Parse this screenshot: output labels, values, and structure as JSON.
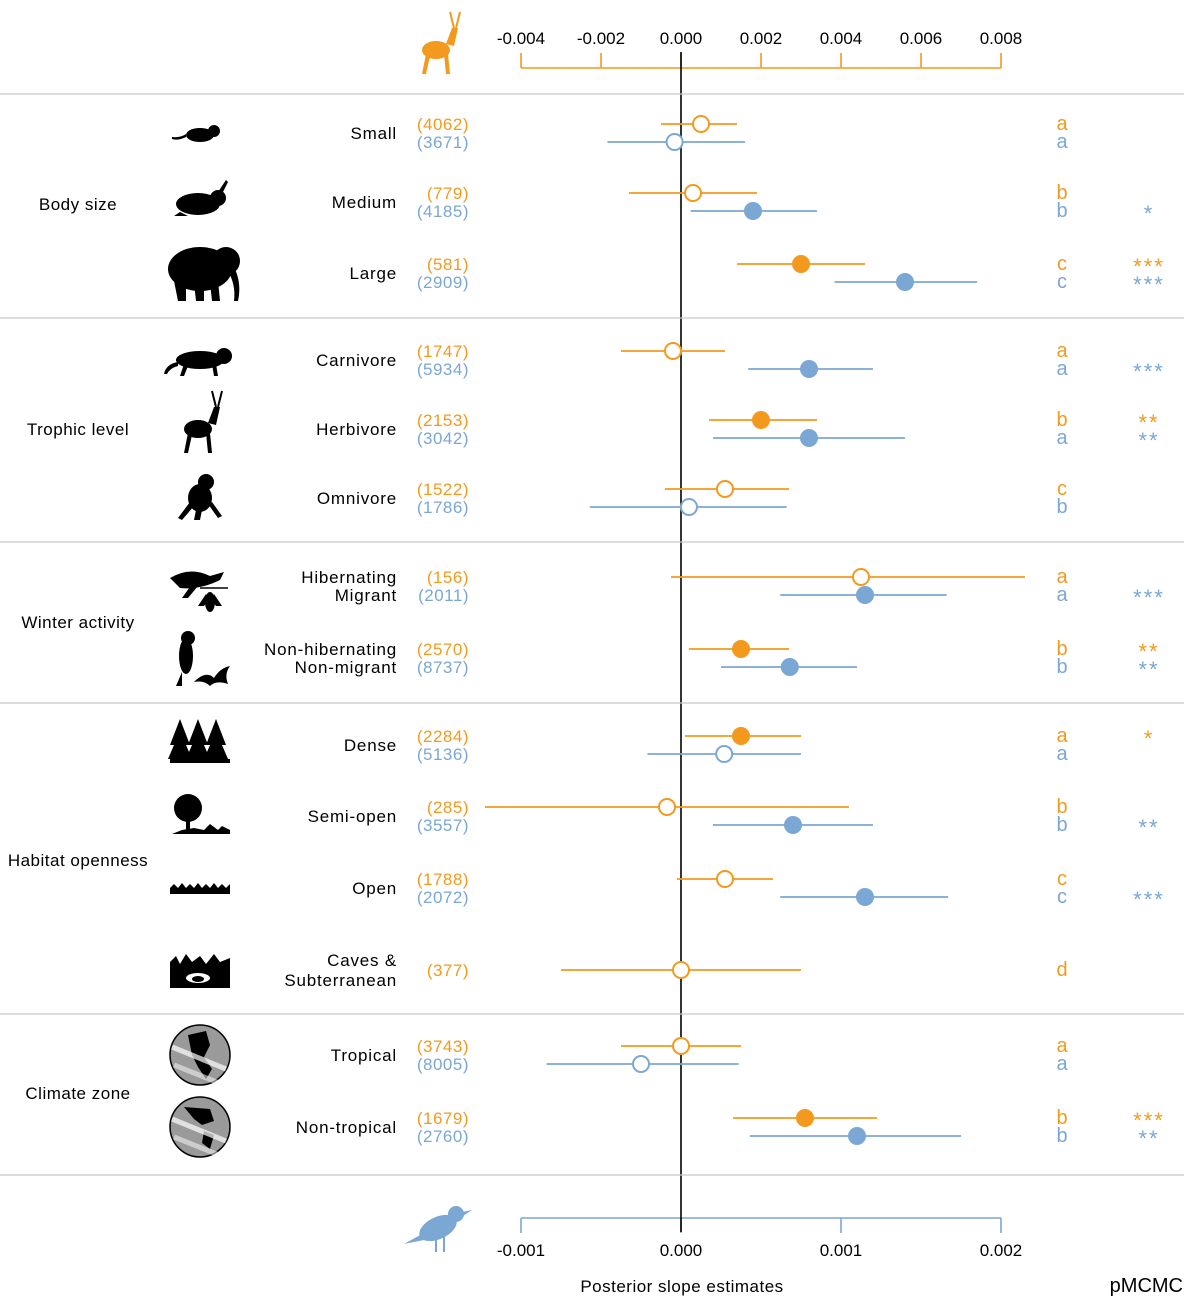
{
  "colors": {
    "mammal": "#F39A1E",
    "bird": "#7BA7D4",
    "line": "#000000",
    "separator": "#C8C8C8"
  },
  "chart_data": {
    "type": "forest",
    "xlabel": "Posterior slope estimates",
    "significance_label": "pMCMC",
    "top_axis": {
      "series": "mammal",
      "icon": "antelope-icon",
      "range": [
        -0.004,
        0.008
      ],
      "ticks": [
        "-0.004",
        "-0.002",
        "0.000",
        "0.002",
        "0.004",
        "0.006",
        "0.008"
      ]
    },
    "bottom_axis": {
      "series": "bird",
      "icon": "bird-icon",
      "range": [
        -0.001,
        0.002
      ],
      "ticks": [
        "-0.001",
        "0.000",
        "0.001",
        "0.002"
      ]
    },
    "groups": [
      {
        "label": "Body size",
        "rows": [
          {
            "label": [
              "Small"
            ],
            "icon": "rat-icon",
            "m": {
              "n": "(4062)",
              "est": 0.0005,
              "lo": -0.0005,
              "hi": 0.0014,
              "filled": false,
              "letter": "a",
              "stars": ""
            },
            "b": {
              "n": "(3671)",
              "est": -4e-05,
              "lo": -0.00046,
              "hi": 0.0004,
              "filled": false,
              "letter": "a",
              "stars": ""
            }
          },
          {
            "label": [
              "Medium"
            ],
            "icon": "rabbit-icon",
            "m": {
              "n": "(779)",
              "est": 0.0003,
              "lo": -0.0013,
              "hi": 0.0019,
              "filled": false,
              "letter": "b",
              "stars": ""
            },
            "b": {
              "n": "(4185)",
              "est": 0.00045,
              "lo": 6e-05,
              "hi": 0.00085,
              "filled": true,
              "letter": "b",
              "stars": "*"
            }
          },
          {
            "label": [
              "Large"
            ],
            "icon": "elephant-icon",
            "m": {
              "n": "(581)",
              "est": 0.003,
              "lo": 0.0014,
              "hi": 0.0046,
              "filled": true,
              "letter": "c",
              "stars": "***"
            },
            "b": {
              "n": "(2909)",
              "est": 0.0014,
              "lo": 0.00096,
              "hi": 0.00185,
              "filled": true,
              "letter": "c",
              "stars": "***"
            }
          }
        ]
      },
      {
        "label": "Trophic level",
        "rows": [
          {
            "label": [
              "Carnivore"
            ],
            "icon": "leopard-icon",
            "m": {
              "n": "(1747)",
              "est": -0.0002,
              "lo": -0.0015,
              "hi": 0.0011,
              "filled": false,
              "letter": "a",
              "stars": ""
            },
            "b": {
              "n": "(5934)",
              "est": 0.0008,
              "lo": 0.00042,
              "hi": 0.0012,
              "filled": true,
              "letter": "a",
              "stars": "***"
            }
          },
          {
            "label": [
              "Herbivore"
            ],
            "icon": "antelope-icon",
            "m": {
              "n": "(2153)",
              "est": 0.002,
              "lo": 0.0007,
              "hi": 0.0034,
              "filled": true,
              "letter": "b",
              "stars": "**"
            },
            "b": {
              "n": "(3042)",
              "est": 0.0008,
              "lo": 0.0002,
              "hi": 0.0014,
              "filled": true,
              "letter": "a",
              "stars": "**"
            }
          },
          {
            "label": [
              "Omnivore"
            ],
            "icon": "monkey-icon",
            "m": {
              "n": "(1522)",
              "est": 0.0011,
              "lo": -0.0004,
              "hi": 0.0027,
              "filled": false,
              "letter": "c",
              "stars": ""
            },
            "b": {
              "n": "(1786)",
              "est": 5e-05,
              "lo": -0.00057,
              "hi": 0.00066,
              "filled": false,
              "letter": "b",
              "stars": ""
            }
          }
        ]
      },
      {
        "label": "Winter activity",
        "rows": [
          {
            "label": [
              "Hibernating",
              "Migrant"
            ],
            "icon": "goose-bat-icon",
            "m": {
              "n": "(156)",
              "est": 0.0045,
              "lo": -0.00025,
              "hi": 0.0086,
              "filled": false,
              "letter": "a",
              "stars": ""
            },
            "b": {
              "n": "(2011)",
              "est": 0.00115,
              "lo": 0.00062,
              "hi": 0.00166,
              "filled": true,
              "letter": "a",
              "stars": "***"
            }
          },
          {
            "label": [
              "Non-hibernating",
              "Non-migrant"
            ],
            "icon": "parrot-bat-icon",
            "m": {
              "n": "(2570)",
              "est": 0.0015,
              "lo": 0.0002,
              "hi": 0.0027,
              "filled": true,
              "letter": "b",
              "stars": "**"
            },
            "b": {
              "n": "(8737)",
              "est": 0.00068,
              "lo": 0.00025,
              "hi": 0.0011,
              "filled": true,
              "letter": "b",
              "stars": "**"
            }
          }
        ]
      },
      {
        "label": "Habitat openness",
        "rows": [
          {
            "label": [
              "Dense"
            ],
            "icon": "forest-icon",
            "m": {
              "n": "(2284)",
              "est": 0.0015,
              "lo": 0.0001,
              "hi": 0.003,
              "filled": true,
              "letter": "a",
              "stars": "*"
            },
            "b": {
              "n": "(5136)",
              "est": 0.00027,
              "lo": -0.00021,
              "hi": 0.00075,
              "filled": false,
              "letter": "a",
              "stars": ""
            }
          },
          {
            "label": [
              "Semi-open"
            ],
            "icon": "tree-grass-icon",
            "m": {
              "n": "(285)",
              "est": -0.00035,
              "lo": -0.0049,
              "hi": 0.0042,
              "filled": false,
              "letter": "b",
              "stars": ""
            },
            "b": {
              "n": "(3557)",
              "est": 0.0007,
              "lo": 0.0002,
              "hi": 0.0012,
              "filled": true,
              "letter": "b",
              "stars": "**"
            }
          },
          {
            "label": [
              "Open"
            ],
            "icon": "grass-icon",
            "m": {
              "n": "(1788)",
              "est": 0.0011,
              "lo": -0.0001,
              "hi": 0.0023,
              "filled": false,
              "letter": "c",
              "stars": ""
            },
            "b": {
              "n": "(2072)",
              "est": 0.00115,
              "lo": 0.00062,
              "hi": 0.00167,
              "filled": true,
              "letter": "c",
              "stars": "***"
            }
          },
          {
            "label": [
              "Caves &",
              "Subterranean"
            ],
            "icon": "cave-icon",
            "m": {
              "n": "(377)",
              "est": 0.0,
              "lo": -0.003,
              "hi": 0.003,
              "filled": false,
              "letter": "d",
              "stars": ""
            },
            "b": null
          }
        ]
      },
      {
        "label": "Climate zone",
        "rows": [
          {
            "label": [
              "Tropical"
            ],
            "icon": "globe-tropical-icon",
            "m": {
              "n": "(3743)",
              "est": 0.0,
              "lo": -0.0015,
              "hi": 0.0015,
              "filled": false,
              "letter": "a",
              "stars": ""
            },
            "b": {
              "n": "(8005)",
              "est": -0.00025,
              "lo": -0.00084,
              "hi": 0.00036,
              "filled": false,
              "letter": "a",
              "stars": ""
            }
          },
          {
            "label": [
              "Non-tropical"
            ],
            "icon": "globe-temperate-icon",
            "m": {
              "n": "(1679)",
              "est": 0.0031,
              "lo": 0.0013,
              "hi": 0.0049,
              "filled": true,
              "letter": "b",
              "stars": "***"
            },
            "b": {
              "n": "(2760)",
              "est": 0.0011,
              "lo": 0.00043,
              "hi": 0.00175,
              "filled": true,
              "letter": "b",
              "stars": "**"
            }
          }
        ]
      }
    ]
  }
}
